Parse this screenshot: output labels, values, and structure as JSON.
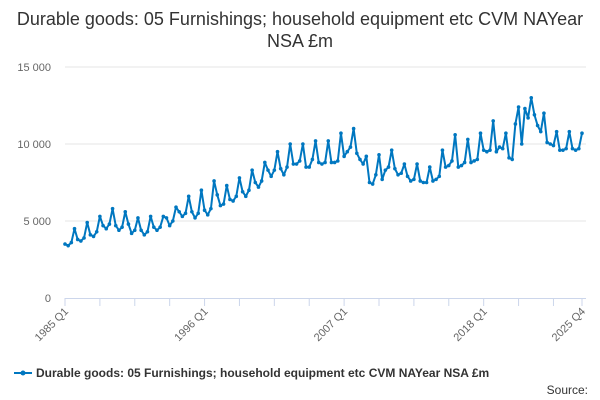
{
  "chart_data": {
    "type": "line",
    "title": "Durable goods: 05 Furnishings; household equipment etc CVM NAYear NSA £m",
    "xlabel": "",
    "ylabel": "",
    "ylim": [
      0,
      15000
    ],
    "yticks": [
      0,
      5000,
      10000,
      15000
    ],
    "ytick_labels": [
      "0",
      "5 000",
      "10 000",
      "15 000"
    ],
    "xtick_labels": [
      "1985 Q1",
      "1996 Q1",
      "2007 Q1",
      "2018 Q1",
      "2025 Q4"
    ],
    "x_start": "1985 Q1",
    "x_end": "2025 Q4",
    "grid": "horizontal",
    "legend_position": "bottom",
    "color": "#0077c0",
    "source_label": "Source:",
    "series": [
      {
        "name": "Durable goods: 05 Furnishings; household equipment etc CVM NAYear NSA £m",
        "values": [
          3500,
          3400,
          3600,
          4500,
          3800,
          3700,
          3900,
          4900,
          4100,
          4000,
          4300,
          5300,
          4700,
          4500,
          4800,
          5800,
          4700,
          4400,
          4600,
          5600,
          4800,
          4200,
          4400,
          5200,
          4400,
          4100,
          4300,
          5300,
          4600,
          4400,
          4600,
          5300,
          5200,
          4700,
          5000,
          5900,
          5600,
          5300,
          5500,
          6600,
          5600,
          5200,
          5500,
          7000,
          5700,
          5400,
          5800,
          7600,
          6700,
          6000,
          6100,
          7300,
          6400,
          6300,
          6600,
          7800,
          6900,
          6600,
          7000,
          8300,
          7500,
          7200,
          7600,
          8800,
          8300,
          7900,
          8300,
          9500,
          8400,
          8000,
          8500,
          10000,
          8700,
          8700,
          8900,
          10000,
          8500,
          8500,
          9000,
          10200,
          8800,
          8700,
          8800,
          10200,
          8800,
          8800,
          8900,
          10700,
          9200,
          9500,
          9800,
          11000,
          9400,
          9000,
          8700,
          9200,
          7500,
          7400,
          8000,
          9300,
          7700,
          8300,
          8500,
          9600,
          8400,
          8000,
          8100,
          8700,
          7900,
          7600,
          7700,
          8700,
          7600,
          7500,
          7500,
          8500,
          7600,
          7700,
          7900,
          9600,
          8500,
          8600,
          8900,
          10600,
          8500,
          8600,
          8800,
          10300,
          8800,
          8900,
          9000,
          10700,
          9600,
          9500,
          9600,
          11500,
          9500,
          9800,
          9700,
          10700,
          9100,
          9000,
          11300,
          12400,
          10000,
          12300,
          11700,
          13000,
          11900,
          11200,
          10800,
          12000,
          10100,
          10000,
          9900,
          10800,
          9600,
          9600,
          9700,
          10800,
          9700,
          9600,
          9700,
          10700
        ]
      }
    ]
  }
}
